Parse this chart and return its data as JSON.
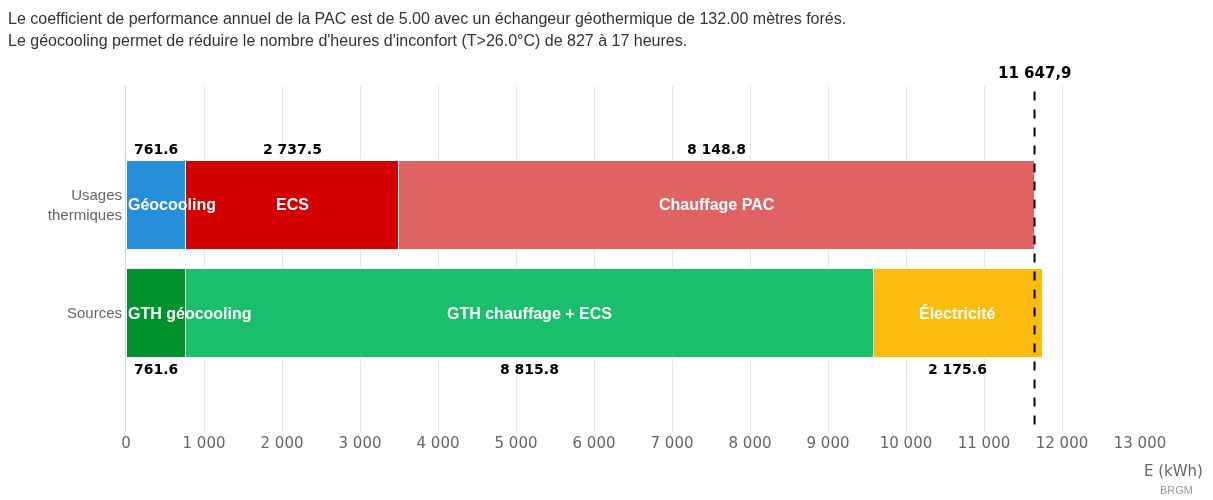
{
  "chart_data": {
    "type": "bar",
    "orientation": "horizontal",
    "stacked": true,
    "title": "Le coefficient de performance annuel de la PAC est de 5.00 avec un échangeur géothermique de 132.00 mètres forés.",
    "subtitle": "Le géocooling permet de réduire le nombre d'heures d'inconfort (T>26.0°C) de 827 à 17 heures.",
    "xlabel": "E (kWh)",
    "categories": [
      "Usages thermiques",
      "Sources"
    ],
    "series": [
      {
        "name": "Géocooling",
        "color": "#268fd9",
        "values": [
          761.6,
          null
        ],
        "value_labels": [
          "761.6",
          null
        ]
      },
      {
        "name": "ECS",
        "color": "#d40000",
        "values": [
          2737.5,
          null
        ],
        "value_labels": [
          "2 737.5",
          null
        ]
      },
      {
        "name": "Chauffage PAC",
        "color": "#e06363",
        "values": [
          8148.8,
          null
        ],
        "value_labels": [
          "8 148.8",
          null
        ]
      },
      {
        "name": "GTH géocooling",
        "color": "#00922c",
        "values": [
          null,
          761.6
        ],
        "value_labels": [
          null,
          "761.6"
        ]
      },
      {
        "name": "GTH chauffage + ECS",
        "color": "#19bf6a",
        "values": [
          null,
          8815.8
        ],
        "value_labels": [
          null,
          "8 815.8"
        ]
      },
      {
        "name": "Électricité",
        "color": "#fbbc0e",
        "values": [
          null,
          2175.6
        ],
        "value_labels": [
          null,
          "2 175.6"
        ]
      }
    ],
    "xlim": [
      0,
      13000
    ],
    "xticks": [
      0,
      {
        "value": 1000,
        "label": "1 000"
      },
      {
        "value": 2000,
        "label": "2 000"
      },
      {
        "value": 3000,
        "label": "3 000"
      },
      {
        "value": 4000,
        "label": "4 000"
      },
      {
        "value": 5000,
        "label": "5 000"
      },
      {
        "value": 6000,
        "label": "6 000"
      },
      {
        "value": 7000,
        "label": "7 000"
      },
      {
        "value": 8000,
        "label": "8 000"
      },
      {
        "value": 9000,
        "label": "9 000"
      },
      {
        "value": 10000,
        "label": "10 000"
      },
      {
        "value": 11000,
        "label": "11 000"
      },
      {
        "value": 12000,
        "label": "12 000"
      },
      {
        "value": 13000,
        "label": "13 000"
      }
    ],
    "grid": "x",
    "ref_lines": [
      {
        "axis": "x",
        "value": 11647.9,
        "label": "11 647,9",
        "color": "#000000",
        "line_style": "dashed"
      }
    ],
    "annotations": [
      "BRGM"
    ]
  }
}
